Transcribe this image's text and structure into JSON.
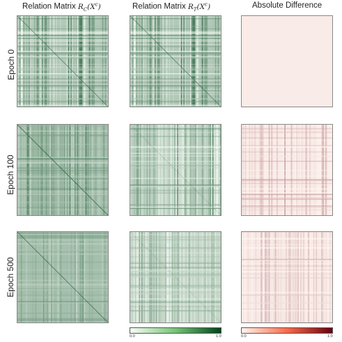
{
  "columns": {
    "rc_prefix": "Relation Matrix ",
    "rc_math": "R_C(X^c)",
    "rt_prefix": "Relation Matrix ",
    "rt_math": "R_T(X^c)",
    "diff": "Absolute Difference"
  },
  "rows": {
    "epoch_0": "Epoch 0",
    "epoch_100": "Epoch 100",
    "epoch_500": "Epoch 500"
  },
  "colorbars": {
    "green": {
      "min_label": "0.0",
      "max_label": "1.0",
      "from": "#f7fcf5",
      "to": "#00441b"
    },
    "red": {
      "min_label": "0.0",
      "max_label": "1.0",
      "from": "#fff5f0",
      "to": "#67000d"
    }
  },
  "colors": {
    "green_base": "#7fc97f",
    "red_base": "#fdf0ea",
    "frame": "#888888"
  },
  "chart_data": [
    {
      "type": "heatmap",
      "title": "Relation Matrix R_C(X^c)",
      "row_label": "Epoch 0",
      "colormap": "Greens",
      "range": [
        0.0,
        1.0
      ]
    },
    {
      "type": "heatmap",
      "title": "Relation Matrix R_T(X^c)",
      "row_label": "Epoch 0",
      "colormap": "Greens",
      "range": [
        0.0,
        1.0
      ]
    },
    {
      "type": "heatmap",
      "title": "Absolute Difference",
      "row_label": "Epoch 0",
      "colormap": "Reds",
      "range": [
        0.0,
        1.0
      ],
      "note": "uniform near 0"
    },
    {
      "type": "heatmap",
      "title": "Relation Matrix R_C(X^c)",
      "row_label": "Epoch 100",
      "colormap": "Greens",
      "range": [
        0.0,
        1.0
      ]
    },
    {
      "type": "heatmap",
      "title": "Relation Matrix R_T(X^c)",
      "row_label": "Epoch 100",
      "colormap": "Greens",
      "range": [
        0.0,
        1.0
      ]
    },
    {
      "type": "heatmap",
      "title": "Absolute Difference",
      "row_label": "Epoch 100",
      "colormap": "Reds",
      "range": [
        0.0,
        1.0
      ]
    },
    {
      "type": "heatmap",
      "title": "Relation Matrix R_C(X^c)",
      "row_label": "Epoch 500",
      "colormap": "Greens",
      "range": [
        0.0,
        1.0
      ]
    },
    {
      "type": "heatmap",
      "title": "Relation Matrix R_T(X^c)",
      "row_label": "Epoch 500",
      "colormap": "Greens",
      "range": [
        0.0,
        1.0
      ]
    },
    {
      "type": "heatmap",
      "title": "Absolute Difference",
      "row_label": "Epoch 500",
      "colormap": "Reds",
      "range": [
        0.0,
        1.0
      ]
    }
  ]
}
